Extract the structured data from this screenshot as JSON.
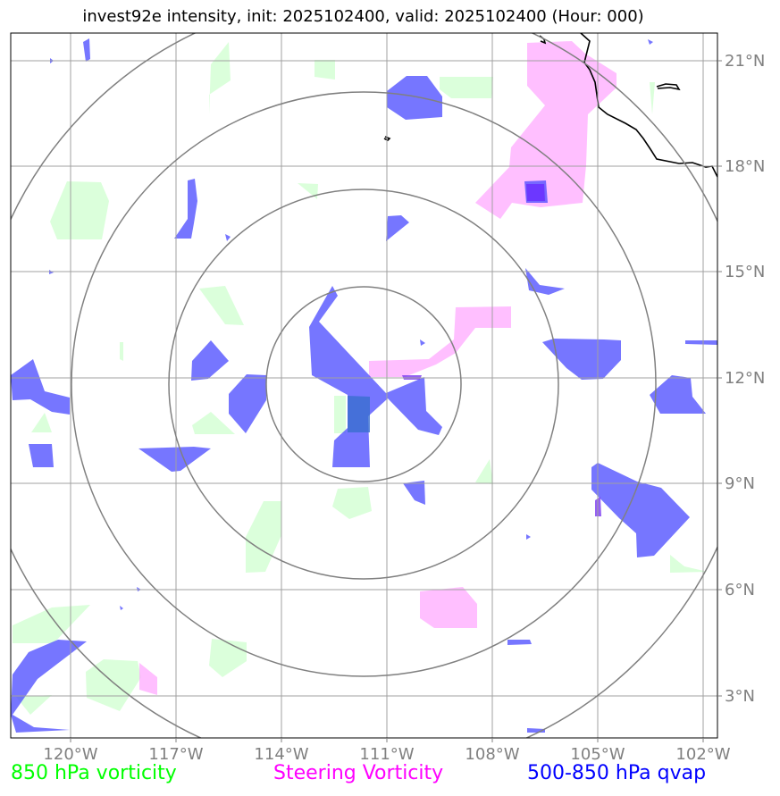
{
  "title": "invest92e intensity, init: 2025102400, valid: 2025102400 (Hour: 000)",
  "lat_labels": [
    "21°N",
    "18°N",
    "15°N",
    "12°N",
    "9°N",
    "6°N",
    "3°N"
  ],
  "lon_labels": [
    "120°W",
    "117°W",
    "114°W",
    "111°W",
    "108°W",
    "105°W",
    "102°W"
  ],
  "legend": {
    "vorticity_850": "850 hPa vorticity",
    "steering": "Steering Vorticity",
    "qvap": "500-850 hPa qvap"
  },
  "colors": {
    "vorticity_850": "#00ff00",
    "steering": "#ff00ff",
    "qvap": "#0000ff",
    "grid": "#a0a0a0",
    "range_rings": "#808080",
    "coastline": "#000000"
  },
  "range_rings": 4,
  "gridlines": true
}
